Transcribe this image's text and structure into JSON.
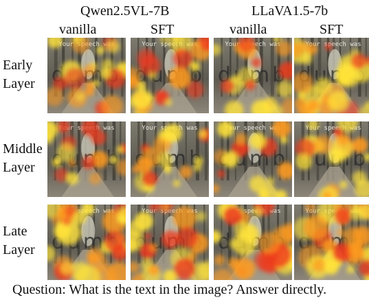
{
  "header": {
    "models": [
      "Qwen2.5VL-7B",
      "LLaVA1.5-7b"
    ],
    "variants": [
      "vanilla",
      "SFT",
      "vanilla",
      "SFT"
    ]
  },
  "rows": [
    {
      "label_line1": "Early",
      "label_line2": "Layer"
    },
    {
      "label_line1": "Middle",
      "label_line2": "Layer"
    },
    {
      "label_line1": "Late",
      "label_line2": "Layer"
    }
  ],
  "image_text": {
    "caption": "Your speech was",
    "word": "dumb"
  },
  "heat_density": [
    [
      0.55,
      0.62,
      0.42,
      0.75
    ],
    [
      0.3,
      0.34,
      0.3,
      0.55
    ],
    [
      0.85,
      0.7,
      0.8,
      0.82
    ]
  ],
  "question": "Question:  What is the text in the image? Answer directly."
}
